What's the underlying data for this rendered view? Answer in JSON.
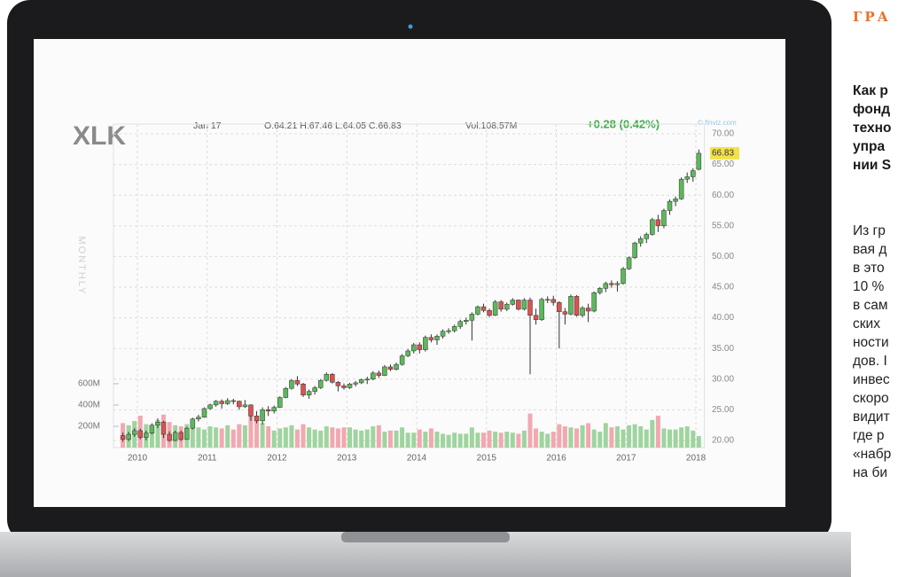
{
  "chart_data": {
    "type": "candlestick",
    "title": "XLK",
    "date": "Jan 17",
    "ohlc_text": "O:64.21 H:67.46 L:64.05 C:66.83",
    "volume_text": "Vol:108.57M",
    "change_text": "+0.28 (0.42%)",
    "source": "© finviz.com",
    "period": "MONTHLY",
    "last_value_label": "66.83",
    "up_color": "#5cb85c",
    "down_color": "#d9534f",
    "volume_up_color": "#9fd49f",
    "volume_down_color": "#f2a8b0",
    "grid": true,
    "xlim": [
      2009.75,
      2018.0833
    ],
    "xticks": [
      2010,
      2011,
      2012,
      2013,
      2014,
      2015,
      2016,
      2017,
      2018
    ],
    "ylim": [
      18.84,
      71.59
    ],
    "yticks": [
      {
        "value": 20,
        "label": "20.00"
      },
      {
        "value": 25,
        "label": "25.00"
      },
      {
        "value": 30,
        "label": "30.00"
      },
      {
        "value": 35,
        "label": "35.00"
      },
      {
        "value": 40,
        "label": "40.00"
      },
      {
        "value": 45,
        "label": "45.00"
      },
      {
        "value": 50,
        "label": "50.00"
      },
      {
        "value": 55,
        "label": "55.00"
      },
      {
        "value": 60,
        "label": "60.00"
      },
      {
        "value": 65,
        "label": "65.00"
      },
      {
        "value": 70,
        "label": "70.00"
      }
    ],
    "y2lim": [
      0,
      3040
    ],
    "y2ticks": [
      {
        "value": 200,
        "label": "200M"
      },
      {
        "value": 400,
        "label": "400M"
      },
      {
        "value": 600,
        "label": "600M"
      }
    ],
    "candles": [
      [
        20.8,
        21.3,
        19.8,
        20.2
      ],
      [
        20.2,
        21.4,
        19.9,
        21.0
      ],
      [
        21.0,
        22.0,
        20.6,
        21.6
      ],
      [
        21.6,
        21.9,
        20.2,
        20.5
      ],
      [
        20.5,
        21.6,
        20.0,
        21.2
      ],
      [
        21.2,
        22.8,
        21.0,
        22.5
      ],
      [
        22.5,
        23.6,
        22.0,
        23.0
      ],
      [
        23.0,
        23.2,
        20.4,
        21.0
      ],
      [
        21.0,
        21.5,
        19.8,
        20.0
      ],
      [
        20.0,
        21.6,
        19.9,
        21.3
      ],
      [
        21.3,
        21.6,
        19.9,
        20.2
      ],
      [
        20.2,
        22.2,
        20.1,
        22.0
      ],
      [
        22.0,
        23.7,
        21.8,
        23.5
      ],
      [
        23.5,
        24.2,
        23.1,
        23.8
      ],
      [
        23.8,
        25.4,
        23.7,
        25.2
      ],
      [
        25.2,
        26.0,
        25.0,
        25.8
      ],
      [
        25.8,
        26.6,
        25.5,
        26.4
      ],
      [
        26.4,
        26.7,
        25.2,
        26.0
      ],
      [
        26.0,
        26.9,
        25.8,
        26.5
      ],
      [
        26.5,
        26.8,
        25.9,
        26.4
      ],
      [
        26.4,
        26.5,
        25.0,
        25.5
      ],
      [
        25.5,
        26.6,
        25.3,
        25.8
      ],
      [
        25.8,
        25.9,
        23.2,
        24.0
      ],
      [
        24.0,
        24.8,
        22.8,
        23.2
      ],
      [
        23.2,
        25.4,
        22.6,
        25.0
      ],
      [
        25.0,
        25.6,
        24.0,
        24.8
      ],
      [
        24.8,
        25.7,
        24.4,
        25.4
      ],
      [
        25.4,
        27.2,
        25.3,
        27.0
      ],
      [
        27.0,
        28.7,
        26.9,
        28.5
      ],
      [
        28.5,
        30.0,
        28.3,
        29.8
      ],
      [
        29.8,
        30.5,
        28.9,
        29.2
      ],
      [
        29.2,
        29.4,
        27.1,
        27.4
      ],
      [
        27.4,
        28.3,
        26.8,
        28.0
      ],
      [
        28.0,
        28.9,
        27.5,
        28.6
      ],
      [
        28.6,
        30.0,
        28.4,
        29.8
      ],
      [
        29.8,
        31.1,
        29.6,
        30.8
      ],
      [
        30.8,
        31.0,
        29.3,
        29.5
      ],
      [
        29.5,
        29.7,
        28.0,
        28.9
      ],
      [
        28.9,
        29.3,
        28.3,
        28.6
      ],
      [
        28.6,
        29.4,
        28.4,
        29.2
      ],
      [
        29.2,
        29.7,
        28.8,
        29.4
      ],
      [
        29.4,
        30.1,
        29.2,
        29.9
      ],
      [
        29.9,
        30.4,
        29.2,
        30.0
      ],
      [
        30.0,
        31.3,
        29.8,
        31.0
      ],
      [
        31.0,
        31.4,
        30.2,
        30.6
      ],
      [
        30.6,
        32.3,
        30.5,
        32.0
      ],
      [
        32.0,
        32.4,
        31.3,
        31.6
      ],
      [
        31.6,
        32.7,
        31.4,
        32.4
      ],
      [
        32.4,
        34.1,
        32.2,
        33.8
      ],
      [
        33.8,
        34.9,
        33.6,
        34.6
      ],
      [
        34.6,
        35.9,
        34.2,
        35.6
      ],
      [
        35.6,
        36.0,
        34.2,
        34.8
      ],
      [
        34.8,
        37.1,
        34.5,
        36.8
      ],
      [
        36.8,
        37.3,
        36.0,
        36.4
      ],
      [
        36.4,
        37.3,
        35.6,
        37.0
      ],
      [
        37.0,
        38.1,
        36.6,
        37.8
      ],
      [
        37.8,
        38.3,
        37.4,
        37.9
      ],
      [
        37.9,
        38.9,
        37.6,
        38.6
      ],
      [
        38.6,
        39.7,
        38.2,
        39.4
      ],
      [
        39.4,
        40.0,
        38.9,
        39.6
      ],
      [
        39.6,
        40.9,
        36.3,
        40.6
      ],
      [
        40.6,
        42.0,
        40.4,
        41.8
      ],
      [
        41.8,
        42.3,
        40.9,
        41.2
      ],
      [
        41.2,
        41.5,
        40.1,
        40.4
      ],
      [
        40.4,
        42.9,
        40.3,
        42.6
      ],
      [
        42.6,
        42.9,
        41.0,
        41.4
      ],
      [
        41.4,
        42.5,
        41.1,
        42.2
      ],
      [
        42.2,
        43.2,
        42.0,
        42.9
      ],
      [
        42.9,
        43.0,
        41.2,
        41.4
      ],
      [
        41.4,
        43.2,
        41.2,
        42.9
      ],
      [
        42.9,
        43.3,
        30.8,
        40.4
      ],
      [
        40.4,
        41.5,
        38.9,
        39.7
      ],
      [
        39.7,
        43.3,
        39.5,
        43.0
      ],
      [
        43.0,
        43.5,
        42.4,
        43.0
      ],
      [
        43.0,
        43.6,
        42.0,
        42.5
      ],
      [
        42.5,
        42.7,
        35.0,
        41.0
      ],
      [
        41.0,
        41.6,
        38.9,
        40.6
      ],
      [
        40.6,
        43.8,
        40.4,
        43.5
      ],
      [
        43.5,
        43.7,
        40.2,
        40.4
      ],
      [
        40.4,
        41.9,
        40.1,
        41.6
      ],
      [
        41.6,
        42.3,
        39.3,
        41.1
      ],
      [
        41.1,
        44.3,
        40.9,
        44.1
      ],
      [
        44.1,
        45.0,
        43.8,
        44.8
      ],
      [
        44.8,
        45.9,
        44.2,
        45.6
      ],
      [
        45.6,
        46.1,
        44.9,
        45.4
      ],
      [
        45.4,
        46.0,
        44.3,
        45.6
      ],
      [
        45.6,
        48.3,
        45.4,
        48.0
      ],
      [
        48.0,
        50.0,
        47.8,
        49.8
      ],
      [
        49.8,
        52.4,
        49.6,
        52.2
      ],
      [
        52.2,
        53.3,
        51.6,
        52.9
      ],
      [
        52.9,
        53.9,
        52.2,
        53.6
      ],
      [
        53.6,
        56.3,
        53.4,
        56.0
      ],
      [
        56.0,
        56.8,
        54.0,
        55.0
      ],
      [
        55.0,
        57.8,
        54.6,
        57.5
      ],
      [
        57.5,
        59.3,
        56.8,
        59.0
      ],
      [
        59.0,
        59.8,
        58.2,
        59.4
      ],
      [
        59.4,
        62.9,
        59.2,
        62.6
      ],
      [
        62.6,
        63.7,
        62.0,
        63.0
      ],
      [
        63.0,
        64.4,
        62.2,
        64.0
      ],
      [
        64.21,
        67.46,
        64.05,
        66.83
      ]
    ],
    "volumes": [
      230,
      210,
      250,
      300,
      220,
      200,
      260,
      310,
      240,
      210,
      200,
      220,
      180,
      190,
      170,
      200,
      190,
      180,
      210,
      170,
      220,
      210,
      350,
      280,
      230,
      200,
      160,
      180,
      190,
      210,
      170,
      220,
      190,
      170,
      160,
      200,
      190,
      180,
      190,
      190,
      170,
      160,
      170,
      200,
      210,
      150,
      160,
      160,
      190,
      140,
      140,
      170,
      150,
      180,
      150,
      130,
      120,
      140,
      130,
      130,
      190,
      140,
      140,
      160,
      150,
      140,
      150,
      140,
      130,
      160,
      320,
      180,
      150,
      130,
      150,
      220,
      200,
      190,
      180,
      210,
      230,
      170,
      150,
      230,
      190,
      200,
      170,
      210,
      220,
      200,
      170,
      260,
      300,
      180,
      170,
      170,
      190,
      200,
      160,
      108.57
    ]
  },
  "article": {
    "label": "ГРА",
    "headline": [
      "Как р",
      "фонд",
      "техно",
      "упра",
      "нии S"
    ],
    "body": [
      "Из гр",
      "вая д",
      "в это",
      "10 %",
      "в сам",
      "ских",
      "ности",
      "дов. I",
      "инвес",
      "скоро",
      "видит",
      "где р",
      "«набр",
      "на би"
    ]
  }
}
